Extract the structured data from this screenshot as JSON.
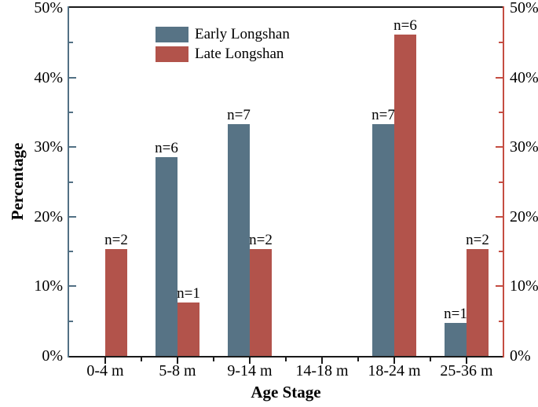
{
  "chart_data": {
    "type": "bar",
    "title": "",
    "xlabel": "Age Stage",
    "ylabel": "Percentage",
    "categories": [
      "0-4 m",
      "5-8 m",
      "9-14 m",
      "14-18 m",
      "18-24 m",
      "25-36 m"
    ],
    "series": [
      {
        "name": "Early Longshan",
        "color": "#577385",
        "values": [
          null,
          28.6,
          33.3,
          null,
          33.3,
          4.8
        ],
        "bar_labels": [
          "",
          "n=6",
          "n=7",
          "",
          "n=7",
          "n=1"
        ]
      },
      {
        "name": "Late Longshan",
        "color": "#b2534b",
        "values": [
          15.4,
          7.7,
          15.4,
          null,
          46.2,
          15.4
        ],
        "bar_labels": [
          "n=2",
          "n=1",
          "n=2",
          "",
          "n=6",
          "n=2"
        ]
      }
    ],
    "y_axis": {
      "min": 0,
      "max": 50,
      "major_step": 10,
      "minor_step": 5,
      "left_tick_labels": [
        "0%",
        "10%",
        "20%",
        "30%",
        "40%",
        "50%"
      ],
      "right_tick_labels": [
        "0%",
        "10%",
        "20%",
        "30%",
        "40%",
        "50%"
      ]
    },
    "axis_colors": {
      "left": "#527084",
      "right": "#c44d42",
      "top": "#1a1a1a",
      "bottom": "#1a1a1a"
    },
    "grid": "off",
    "legend_position": "top-left-inside"
  }
}
